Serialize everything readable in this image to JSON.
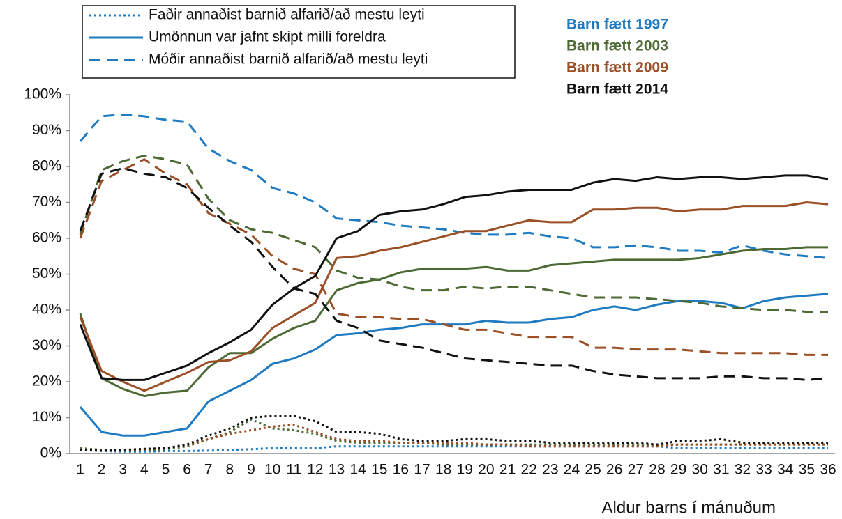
{
  "chart_data": {
    "type": "line",
    "x_label": "Aldur barns í mánuðum",
    "style_legend": [
      {
        "label": "Faðir annaðist barnið alfarið/að mestu leyti",
        "dash": "3,4"
      },
      {
        "label": "Umönnun var jafnt skipt milli foreldra",
        "dash": "none"
      },
      {
        "label": "Móðir annaðist barnið alfarið/að mestu leyti",
        "dash": "16,9"
      }
    ],
    "color_legend": [
      {
        "label": "Barn fætt 1997",
        "color": "#1f7bc1"
      },
      {
        "label": "Barn fætt 2003",
        "color": "#4d6a35"
      },
      {
        "label": "Barn fætt 2009",
        "color": "#9a4f26"
      },
      {
        "label": "Barn fætt 2014",
        "color": "#111111"
      }
    ],
    "categories": [
      1,
      2,
      3,
      4,
      5,
      6,
      7,
      8,
      9,
      10,
      11,
      12,
      13,
      14,
      15,
      16,
      17,
      18,
      19,
      20,
      21,
      22,
      23,
      24,
      25,
      26,
      27,
      28,
      29,
      30,
      31,
      32,
      33,
      34,
      35,
      36
    ],
    "ylim": [
      0,
      100
    ],
    "yticks": [
      {
        "value": 0,
        "label": "0%"
      },
      {
        "value": 10,
        "label": "10%"
      },
      {
        "value": 20,
        "label": "20%"
      },
      {
        "value": 30,
        "label": "30%"
      },
      {
        "value": 40,
        "label": "40%"
      },
      {
        "value": 50,
        "label": "50%"
      },
      {
        "value": 60,
        "label": "60%"
      },
      {
        "value": 70,
        "label": "70%"
      },
      {
        "value": 80,
        "label": "80%"
      },
      {
        "value": 90,
        "label": "90%"
      },
      {
        "value": 100,
        "label": "100%"
      }
    ],
    "grid": false,
    "series": [
      {
        "color": "#1f7bc1",
        "dash": "16,9",
        "values": [
          87,
          94,
          94.5,
          94,
          93,
          92.5,
          85,
          81.5,
          79,
          74,
          72.5,
          70,
          65.5,
          65,
          64.5,
          63.5,
          63,
          62.5,
          61.5,
          61,
          61,
          61.5,
          60.5,
          60,
          57.5,
          57.5,
          58,
          57.5,
          56.5,
          56.5,
          56,
          58,
          56.5,
          55.5,
          55,
          54.5
        ]
      },
      {
        "color": "#1f7bc1",
        "dash": "none",
        "values": [
          13,
          6,
          5,
          5,
          6,
          7,
          14.5,
          17.5,
          20.5,
          25,
          26.5,
          29,
          33,
          33.5,
          34.5,
          35,
          36,
          36,
          36,
          37,
          36.5,
          36.5,
          37.5,
          38,
          40,
          41,
          40,
          41.5,
          42.5,
          42.5,
          42,
          40.5,
          42.5,
          43.5,
          44,
          44.5
        ]
      },
      {
        "color": "#1f7bc1",
        "dash": "3,4",
        "values": [
          1,
          0.7,
          0.5,
          0.5,
          0.7,
          0.7,
          0.8,
          1,
          1.2,
          1.5,
          1.5,
          1.5,
          2,
          2,
          2,
          2,
          2,
          2,
          2,
          2,
          2,
          2,
          2,
          2,
          2,
          2,
          2,
          2,
          1.5,
          1.5,
          1.5,
          1.5,
          1.5,
          1.5,
          1.5,
          1.5
        ]
      },
      {
        "color": "#4d6a35",
        "dash": "16,9",
        "values": [
          61,
          79,
          81.5,
          83,
          82,
          80.5,
          71,
          65,
          62.5,
          61.5,
          59.5,
          57.5,
          51,
          49,
          48.5,
          46.5,
          45.5,
          45.5,
          46.5,
          46,
          46.5,
          46.5,
          45.5,
          44.5,
          43.5,
          43.5,
          43.5,
          43,
          42.5,
          42,
          41,
          40.5,
          40,
          40,
          39.5,
          39.5
        ]
      },
      {
        "color": "#4d6a35",
        "dash": "none",
        "values": [
          39,
          21,
          18,
          16,
          17,
          17.5,
          24,
          28,
          28,
          32,
          35,
          37,
          45.5,
          47.5,
          48.5,
          50.5,
          51.5,
          51.5,
          51.5,
          52,
          51,
          51,
          52.5,
          53,
          53.5,
          54,
          54,
          54,
          54,
          54.5,
          55.5,
          56.5,
          57,
          57,
          57.5,
          57.5
        ]
      },
      {
        "color": "#4d6a35",
        "dash": "3,4",
        "values": [
          1.5,
          1,
          0.8,
          1,
          1.2,
          2,
          4,
          6,
          9.5,
          7,
          6.5,
          5.5,
          3.5,
          3,
          3,
          3,
          3,
          2.5,
          2.5,
          2.5,
          2.5,
          2.5,
          2.5,
          2.5,
          2.5,
          2.5,
          2.5,
          2.5,
          2.5,
          2.5,
          2.5,
          2.5,
          2.5,
          2.5,
          2.5,
          2.5
        ]
      },
      {
        "color": "#9a4f26",
        "dash": "16,9",
        "values": [
          60,
          76,
          79,
          82,
          78,
          75,
          67,
          64,
          61,
          55,
          51.5,
          50,
          39,
          38,
          38,
          37.5,
          37.5,
          36,
          34.5,
          34.5,
          33.5,
          32.5,
          32.5,
          32.5,
          29.5,
          29.5,
          29,
          29,
          29,
          28.5,
          28,
          28,
          28,
          28,
          27.5,
          27.5
        ]
      },
      {
        "color": "#9a4f26",
        "dash": "none",
        "values": [
          38,
          23,
          20,
          17.5,
          20,
          22.5,
          25.5,
          26,
          28.5,
          35,
          38.5,
          42,
          54.5,
          55,
          56.5,
          57.5,
          59,
          60.5,
          62,
          62,
          63.5,
          65,
          64.5,
          64.5,
          68,
          68,
          68.5,
          68.5,
          67.5,
          68,
          68,
          69,
          69,
          69,
          70,
          69.5
        ]
      },
      {
        "color": "#9a4f26",
        "dash": "3,4",
        "values": [
          1,
          0.8,
          0.8,
          1.2,
          1.5,
          2.5,
          4,
          5.5,
          6.5,
          7.5,
          8,
          6,
          4,
          3.5,
          3.5,
          3,
          3,
          3,
          3,
          2.5,
          2.5,
          2,
          2,
          2,
          2,
          2,
          2,
          2,
          2.5,
          2.5,
          2.5,
          2.5,
          2.5,
          2.5,
          2.5,
          2.5
        ]
      },
      {
        "color": "#111111",
        "dash": "16,9",
        "values": [
          62,
          78,
          79.5,
          78,
          77,
          74,
          68.5,
          63.5,
          59,
          52,
          46,
          44.5,
          37,
          35,
          31.5,
          30.5,
          29.5,
          28,
          26.5,
          26,
          25.5,
          25,
          24.5,
          24.5,
          23,
          22,
          21.5,
          21,
          21,
          21,
          21.5,
          21.5,
          21,
          21,
          20.5,
          21
        ]
      },
      {
        "color": "#111111",
        "dash": "none",
        "values": [
          36,
          21,
          20.5,
          20.5,
          22.5,
          24.5,
          28,
          31,
          34.5,
          41.5,
          46,
          49.5,
          60,
          62,
          66.5,
          67.5,
          68,
          69.5,
          71.5,
          72,
          73,
          73.5,
          73.5,
          73.5,
          75.5,
          76.5,
          76,
          77,
          76.5,
          77,
          77,
          76.5,
          77,
          77.5,
          77.5,
          76.5
        ]
      },
      {
        "color": "#111111",
        "dash": "3,4",
        "values": [
          1,
          0.8,
          1,
          1.3,
          1.5,
          2.5,
          5,
          7,
          10,
          10.5,
          10.5,
          9,
          6,
          6,
          5.5,
          4,
          3.5,
          3.5,
          4,
          4,
          3.5,
          3.5,
          3,
          3,
          3,
          3,
          3,
          2.5,
          3.5,
          3.5,
          4,
          3,
          3,
          3,
          3,
          3
        ]
      }
    ]
  }
}
